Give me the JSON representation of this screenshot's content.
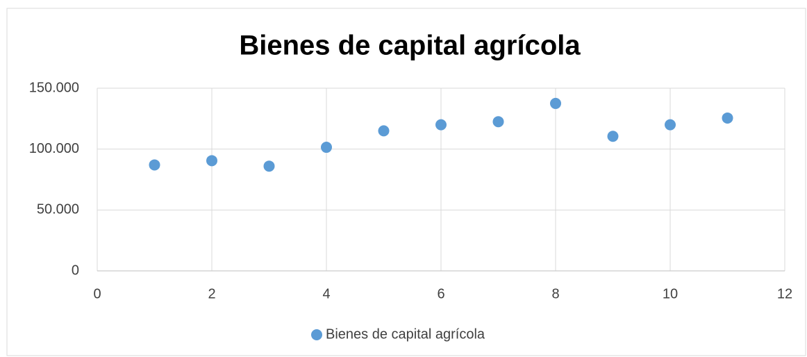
{
  "chart_data": {
    "type": "scatter",
    "title": "Bienes de capital agrícola",
    "series": [
      {
        "name": "Bienes de capital agrícola",
        "color": "#5b9bd5",
        "x": [
          1,
          2,
          3,
          4,
          5,
          6,
          7,
          8,
          9,
          10,
          11
        ],
        "values": [
          87000,
          90500,
          86000,
          101500,
          115000,
          120000,
          122500,
          137500,
          110500,
          120000,
          125500
        ]
      }
    ],
    "xlim": [
      0,
      12
    ],
    "xticks": [
      0,
      2,
      4,
      6,
      8,
      10,
      12
    ],
    "ylim": [
      0,
      150000
    ],
    "yticks": [
      0,
      {
        "value": 50000,
        "label": "50.000"
      },
      {
        "value": 100000,
        "label": "100.000"
      },
      {
        "value": 150000,
        "label": "150.000"
      }
    ],
    "grid": true,
    "legend": "bottom"
  }
}
